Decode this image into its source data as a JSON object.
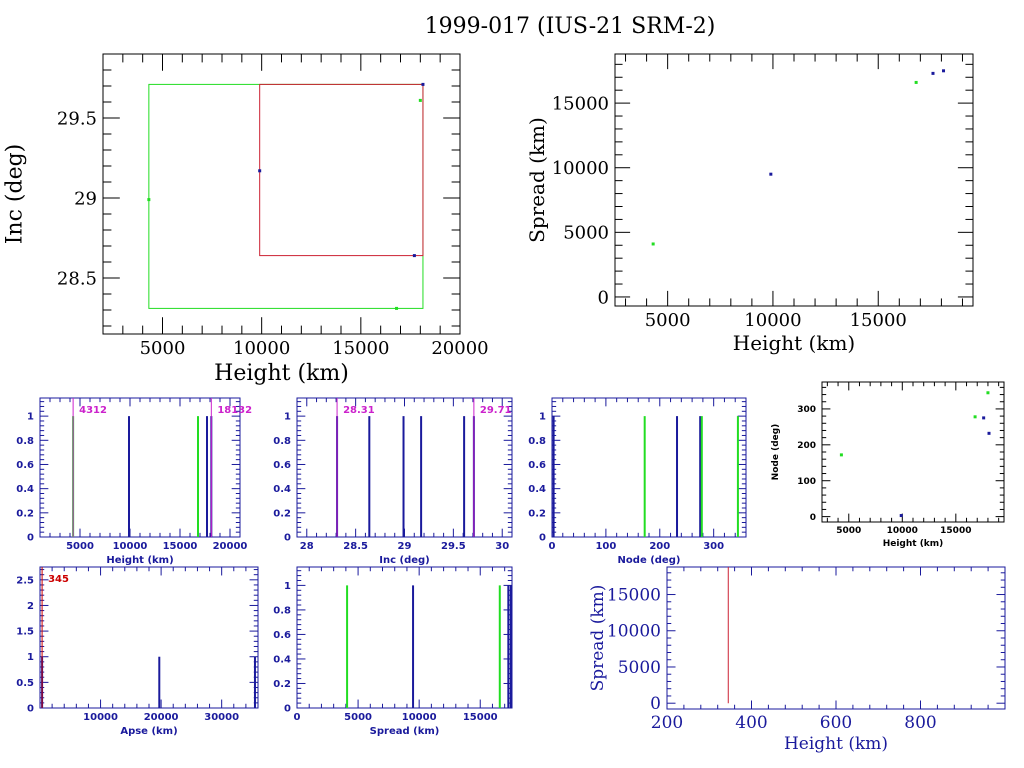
{
  "title": "1999-017 (IUS-21 SRM-2)",
  "colors": {
    "black": "#000000",
    "navy": "#1a1a9c",
    "green": "#22dd22",
    "red": "#cc2233",
    "magenta": "#cc22cc",
    "dkred": "#cc0000"
  },
  "chart_data": [
    {
      "id": "inc_height",
      "type": "scatter",
      "xlabel": "Height (km)",
      "ylabel": "Inc (deg)",
      "xlim": [
        2000,
        20000
      ],
      "ylim": [
        28.15,
        29.9
      ],
      "xticks": [
        5000,
        10000,
        15000,
        20000
      ],
      "yticks": [
        28.5,
        29,
        29.5
      ],
      "boxes": [
        {
          "color": "green",
          "x0": 4312,
          "x1": 18132,
          "y0": 28.31,
          "y1": 29.71
        },
        {
          "color": "red",
          "x0": 9900,
          "x1": 18132,
          "y0": 28.64,
          "y1": 29.71
        }
      ],
      "points": [
        {
          "x": 4312,
          "y": 28.99,
          "color": "green"
        },
        {
          "x": 16800,
          "y": 28.31,
          "color": "green"
        },
        {
          "x": 18000,
          "y": 29.61,
          "color": "green"
        },
        {
          "x": 9900,
          "y": 29.17,
          "color": "navy"
        },
        {
          "x": 17700,
          "y": 28.64,
          "color": "navy"
        },
        {
          "x": 18132,
          "y": 29.71,
          "color": "navy"
        }
      ]
    },
    {
      "id": "spread_height",
      "type": "scatter",
      "xlabel": "Height (km)",
      "ylabel": "Spread (km)",
      "xlim": [
        2500,
        19500
      ],
      "ylim": [
        -700,
        18800
      ],
      "xticks": [
        5000,
        10000,
        15000
      ],
      "yticks": [
        0,
        5000,
        10000,
        15000
      ],
      "points": [
        {
          "x": 4312,
          "y": 4100,
          "color": "green"
        },
        {
          "x": 9900,
          "y": 9500,
          "color": "navy"
        },
        {
          "x": 16800,
          "y": 16600,
          "color": "green"
        },
        {
          "x": 17600,
          "y": 17300,
          "color": "navy"
        },
        {
          "x": 18100,
          "y": 17500,
          "color": "navy"
        }
      ]
    },
    {
      "id": "hist_height",
      "type": "bar",
      "xlabel": "Height (km)",
      "ylabel": "",
      "xlim": [
        1000,
        21000
      ],
      "ylim": [
        0,
        1.15
      ],
      "xticks": [
        5000,
        10000,
        15000,
        20000
      ],
      "yticks": [
        0,
        0.2,
        0.4,
        0.6,
        0.8,
        1
      ],
      "markers": [
        {
          "x": 4312,
          "label": "4312"
        },
        {
          "x": 18132,
          "label": "18132"
        }
      ],
      "bars": [
        {
          "x": 4312,
          "y": 1,
          "color": "green"
        },
        {
          "x": 9900,
          "y": 1,
          "color": "navy"
        },
        {
          "x": 16800,
          "y": 1,
          "color": "green"
        },
        {
          "x": 17700,
          "y": 1,
          "color": "navy"
        },
        {
          "x": 18132,
          "y": 1,
          "color": "navy"
        }
      ]
    },
    {
      "id": "hist_inc",
      "type": "bar",
      "xlabel": "Inc (deg)",
      "ylabel": "",
      "xlim": [
        27.9,
        30.1
      ],
      "ylim": [
        0,
        1.15
      ],
      "xticks": [
        28,
        28.5,
        29,
        29.5,
        30
      ],
      "yticks": [
        0,
        0.2,
        0.4,
        0.6,
        0.8,
        1
      ],
      "markers": [
        {
          "x": 28.31,
          "label": "28.31"
        },
        {
          "x": 29.71,
          "label": "29.71"
        }
      ],
      "bars": [
        {
          "x": 28.31,
          "y": 1,
          "color": "navy"
        },
        {
          "x": 28.64,
          "y": 1,
          "color": "navy"
        },
        {
          "x": 28.99,
          "y": 1,
          "color": "navy"
        },
        {
          "x": 29.17,
          "y": 1,
          "color": "navy"
        },
        {
          "x": 29.61,
          "y": 1,
          "color": "navy"
        },
        {
          "x": 29.71,
          "y": 1,
          "color": "navy"
        }
      ]
    },
    {
      "id": "hist_node",
      "type": "bar",
      "xlabel": "Node (deg)",
      "ylabel": "",
      "xlim": [
        0,
        360
      ],
      "ylim": [
        0,
        1.15
      ],
      "xticks": [
        0,
        100,
        200,
        300
      ],
      "yticks": [
        0,
        0.2,
        0.4,
        0.6,
        0.8,
        1
      ],
      "bars": [
        {
          "x": 3,
          "y": 1,
          "color": "navy"
        },
        {
          "x": 172,
          "y": 1,
          "color": "green"
        },
        {
          "x": 232,
          "y": 1,
          "color": "navy"
        },
        {
          "x": 275,
          "y": 1,
          "color": "navy"
        },
        {
          "x": 278,
          "y": 1,
          "color": "green"
        },
        {
          "x": 345,
          "y": 1,
          "color": "green"
        }
      ]
    },
    {
      "id": "node_height",
      "type": "scatter",
      "xlabel": "Height (km)",
      "ylabel": "Node (deg)",
      "xlim": [
        2500,
        19500
      ],
      "ylim": [
        -15,
        375
      ],
      "xticks": [
        5000,
        10000,
        15000
      ],
      "yticks": [
        0,
        100,
        200,
        300
      ],
      "points": [
        {
          "x": 4312,
          "y": 172,
          "color": "green"
        },
        {
          "x": 9900,
          "y": 3,
          "color": "navy"
        },
        {
          "x": 16800,
          "y": 278,
          "color": "green"
        },
        {
          "x": 17600,
          "y": 275,
          "color": "navy"
        },
        {
          "x": 18000,
          "y": 345,
          "color": "green"
        },
        {
          "x": 18100,
          "y": 232,
          "color": "navy"
        }
      ]
    },
    {
      "id": "hist_apse",
      "type": "bar",
      "xlabel": "Apse (km)",
      "ylabel": "",
      "xlim": [
        0,
        36000
      ],
      "ylim": [
        0,
        2.75
      ],
      "xticks": [
        10000,
        20000,
        30000
      ],
      "yticks": [
        0,
        0.5,
        1,
        1.5,
        2,
        2.5
      ],
      "markers": [
        {
          "x": 345,
          "label": "345",
          "color": "dkred"
        }
      ],
      "bars": [
        {
          "x": 345,
          "y": 1,
          "color": "navy"
        },
        {
          "x": 19700,
          "y": 1,
          "color": "navy"
        },
        {
          "x": 35500,
          "y": 1,
          "color": "navy"
        }
      ]
    },
    {
      "id": "hist_spread",
      "type": "bar",
      "xlabel": "Spread (km)",
      "ylabel": "",
      "xlim": [
        0,
        17600
      ],
      "ylim": [
        0,
        1.15
      ],
      "xticks": [
        0,
        5000,
        10000,
        15000
      ],
      "yticks": [
        0,
        0.2,
        0.4,
        0.6,
        0.8,
        1
      ],
      "bars": [
        {
          "x": 4100,
          "y": 1,
          "color": "green"
        },
        {
          "x": 9500,
          "y": 1,
          "color": "navy"
        },
        {
          "x": 16600,
          "y": 1,
          "color": "green"
        },
        {
          "x": 17300,
          "y": 1,
          "color": "navy"
        },
        {
          "x": 17500,
          "y": 1,
          "color": "navy"
        }
      ]
    },
    {
      "id": "spread_height_low",
      "type": "line",
      "xlabel": "Height (km)",
      "ylabel": "Spread (km)",
      "xlim": [
        200,
        1000
      ],
      "ylim": [
        -800,
        18800
      ],
      "xticks": [
        200,
        400,
        600,
        800
      ],
      "yticks": [
        0,
        5000,
        10000,
        15000
      ],
      "segments": [
        {
          "x0": 345,
          "y0": 0,
          "x1": 345,
          "y1": 18800,
          "color": "red"
        }
      ]
    }
  ]
}
